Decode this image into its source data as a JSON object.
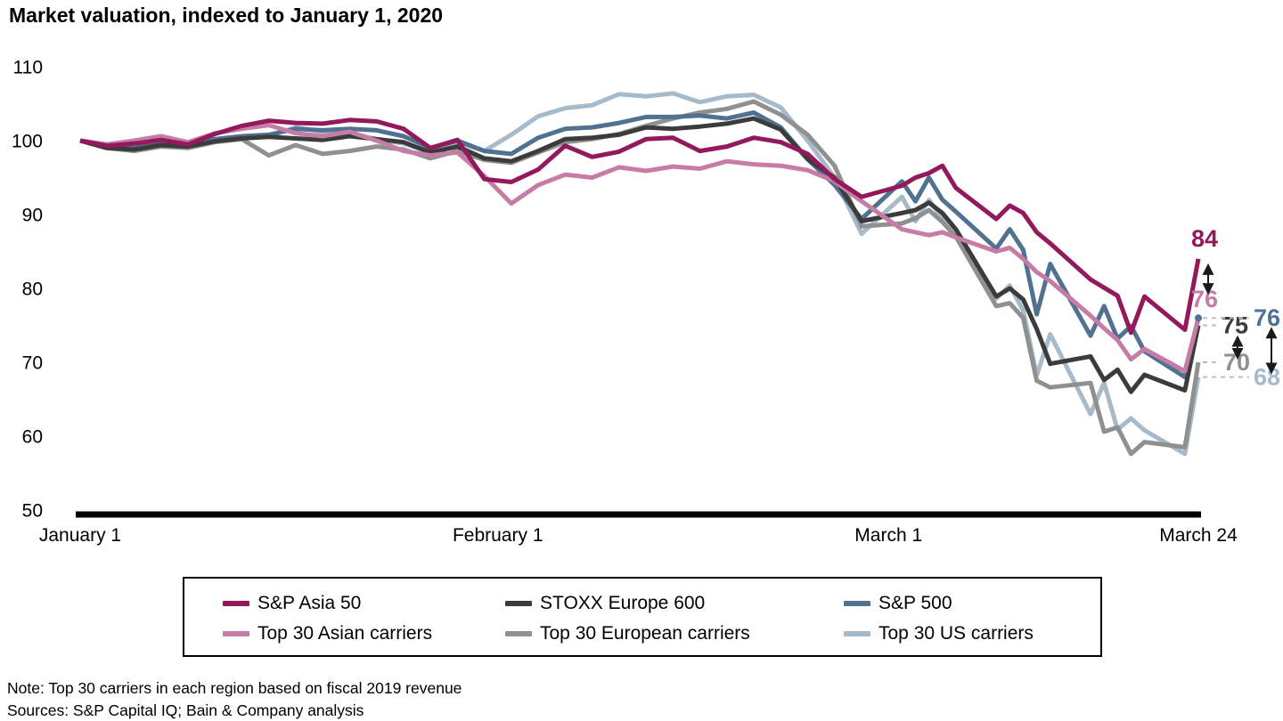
{
  "note": "Note: Top 30 carriers in each region based on fiscal 2019 revenue",
  "sources": "Sources: S&P Capital IQ; Bain & Company analysis",
  "chart_data": {
    "type": "line",
    "title": "Market valuation, indexed to January 1, 2020",
    "xlabel": "",
    "ylabel": "",
    "ylim": [
      50,
      110
    ],
    "grid": false,
    "legend_position": "bottom-box",
    "y_ticks": [
      110,
      100,
      90,
      80,
      70,
      60,
      50
    ],
    "x_tick_labels": [
      "January 1",
      "February 1",
      "March 1",
      "March 24"
    ],
    "x_tick_days": [
      0,
      31,
      60,
      83
    ],
    "dates": [
      "Jan 1",
      "Jan 3",
      "Jan 5",
      "Jan 7",
      "Jan 9",
      "Jan 11",
      "Jan 13",
      "Jan 15",
      "Jan 17",
      "Jan 19",
      "Jan 21",
      "Jan 23",
      "Jan 25",
      "Jan 27",
      "Jan 29",
      "Jan 31",
      "Feb 2",
      "Feb 4",
      "Feb 6",
      "Feb 8",
      "Feb 10",
      "Feb 12",
      "Feb 14",
      "Feb 16",
      "Feb 18",
      "Feb 20",
      "Feb 22",
      "Feb 24",
      "Feb 26",
      "Feb 28",
      "Mar 2",
      "Mar 3",
      "Mar 4",
      "Mar 5",
      "Mar 6",
      "Mar 9",
      "Mar 10",
      "Mar 11",
      "Mar 12",
      "Mar 13",
      "Mar 16",
      "Mar 17",
      "Mar 18",
      "Mar 19",
      "Mar 20",
      "Mar 23",
      "Mar 24"
    ],
    "x_days": [
      0,
      2,
      4,
      6,
      8,
      10,
      12,
      14,
      16,
      18,
      20,
      22,
      24,
      26,
      28,
      30,
      32,
      34,
      36,
      38,
      40,
      42,
      44,
      46,
      48,
      50,
      52,
      54,
      56,
      58,
      61,
      62,
      63,
      64,
      65,
      68,
      69,
      70,
      71,
      72,
      75,
      76,
      77,
      78,
      79,
      82,
      83
    ],
    "series": [
      {
        "key": "sp-asia-50",
        "name": "S&P Asia 50",
        "color": "#93195c",
        "end_label": "84",
        "end_value": 84,
        "values": [
          100,
          99.3,
          99.6,
          100.1,
          99.5,
          100.9,
          102.0,
          102.7,
          102.4,
          102.3,
          102.8,
          102.6,
          101.6,
          99.0,
          100.1,
          94.8,
          94.4,
          96.1,
          99.3,
          97.8,
          98.5,
          100.2,
          100.4,
          98.6,
          99.2,
          100.4,
          99.8,
          98.2,
          94.8,
          92.4,
          93.9,
          95.0,
          95.6,
          96.6,
          93.6,
          89.4,
          91.2,
          90.2,
          87.6,
          86.1,
          81.2,
          80.1,
          79.0,
          74.0,
          78.9,
          74.4,
          84
        ]
      },
      {
        "key": "top-30-asian-carriers",
        "name": "Top 30 Asian carriers",
        "color": "#c77ca6",
        "end_label": "76",
        "end_value": 76,
        "values": [
          100,
          99.5,
          100.0,
          100.6,
          99.8,
          101.0,
          101.6,
          102.1,
          101.0,
          100.6,
          101.2,
          100.0,
          98.6,
          98.0,
          98.4,
          95.2,
          91.5,
          94.0,
          95.4,
          95.0,
          96.4,
          95.9,
          96.5,
          96.2,
          97.2,
          96.8,
          96.6,
          96.0,
          94.5,
          91.8,
          88.0,
          87.6,
          87.2,
          87.6,
          86.9,
          85.0,
          85.5,
          84.0,
          82.2,
          81.0,
          76.3,
          74.6,
          73.0,
          70.4,
          71.8,
          68.8,
          76
        ]
      },
      {
        "key": "stoxx-europe-600",
        "name": "STOXX Europe 600",
        "color": "#3b3b3b",
        "end_label": "75",
        "end_value": 75,
        "values": [
          100,
          99.0,
          98.8,
          99.4,
          99.2,
          99.9,
          100.3,
          100.5,
          100.3,
          100.1,
          100.6,
          100.2,
          99.8,
          98.4,
          99.2,
          97.6,
          97.2,
          98.6,
          100.2,
          100.4,
          100.8,
          101.8,
          101.6,
          101.9,
          102.3,
          103.0,
          101.5,
          97.5,
          95.0,
          89.1,
          90.2,
          90.6,
          91.6,
          90.2,
          88.0,
          78.9,
          80.0,
          78.5,
          74.5,
          69.8,
          70.8,
          67.6,
          69.0,
          66.0,
          68.3,
          66.2,
          75
        ]
      },
      {
        "key": "top-30-european-carriers",
        "name": "Top 30 European carriers",
        "color": "#909090",
        "end_label": "70",
        "end_value": 70,
        "values": [
          100,
          99.0,
          98.6,
          99.2,
          99.0,
          99.8,
          100.2,
          98.0,
          99.4,
          98.2,
          98.6,
          99.2,
          98.8,
          97.6,
          98.6,
          97.4,
          97.0,
          98.4,
          99.8,
          100.2,
          100.9,
          102.0,
          103.0,
          103.8,
          104.3,
          105.3,
          103.5,
          100.8,
          96.6,
          88.4,
          88.8,
          89.5,
          90.6,
          89.0,
          87.0,
          77.6,
          78.0,
          76.0,
          67.5,
          66.6,
          67.2,
          60.6,
          61.2,
          57.6,
          59.2,
          58.5,
          70
        ]
      },
      {
        "key": "sp-500",
        "name": "S&P 500",
        "color": "#50718f",
        "end_label": "76",
        "end_value": 76,
        "values": [
          100,
          99.2,
          99.0,
          99.8,
          99.6,
          100.2,
          100.6,
          100.8,
          101.6,
          101.4,
          101.6,
          101.4,
          100.6,
          99.0,
          100.0,
          98.6,
          98.2,
          100.4,
          101.6,
          101.8,
          102.4,
          103.2,
          103.2,
          103.4,
          103.0,
          103.8,
          101.8,
          97.5,
          94.0,
          89.4,
          94.5,
          91.8,
          95.0,
          92.0,
          90.4,
          85.4,
          88.0,
          85.2,
          76.5,
          83.3,
          73.6,
          77.6,
          73.2,
          74.9,
          71.5,
          68.0,
          76
        ]
      },
      {
        "key": "top-30-us-carriers",
        "name": "Top 30 US carriers",
        "color": "#a6bac9",
        "end_label": "68",
        "end_value": 68,
        "values": [
          100,
          99.2,
          98.8,
          99.6,
          99.4,
          100.0,
          100.4,
          100.6,
          101.8,
          101.2,
          101.0,
          100.2,
          99.6,
          98.4,
          99.8,
          98.6,
          100.8,
          103.3,
          104.4,
          104.8,
          106.3,
          106.0,
          106.4,
          105.2,
          106.0,
          106.2,
          104.5,
          100.0,
          95.0,
          87.4,
          92.4,
          89.1,
          92.0,
          89.5,
          88.0,
          78.6,
          80.4,
          77.0,
          68.2,
          73.8,
          63.0,
          67.2,
          60.9,
          62.4,
          60.8,
          57.6,
          68
        ]
      }
    ]
  }
}
